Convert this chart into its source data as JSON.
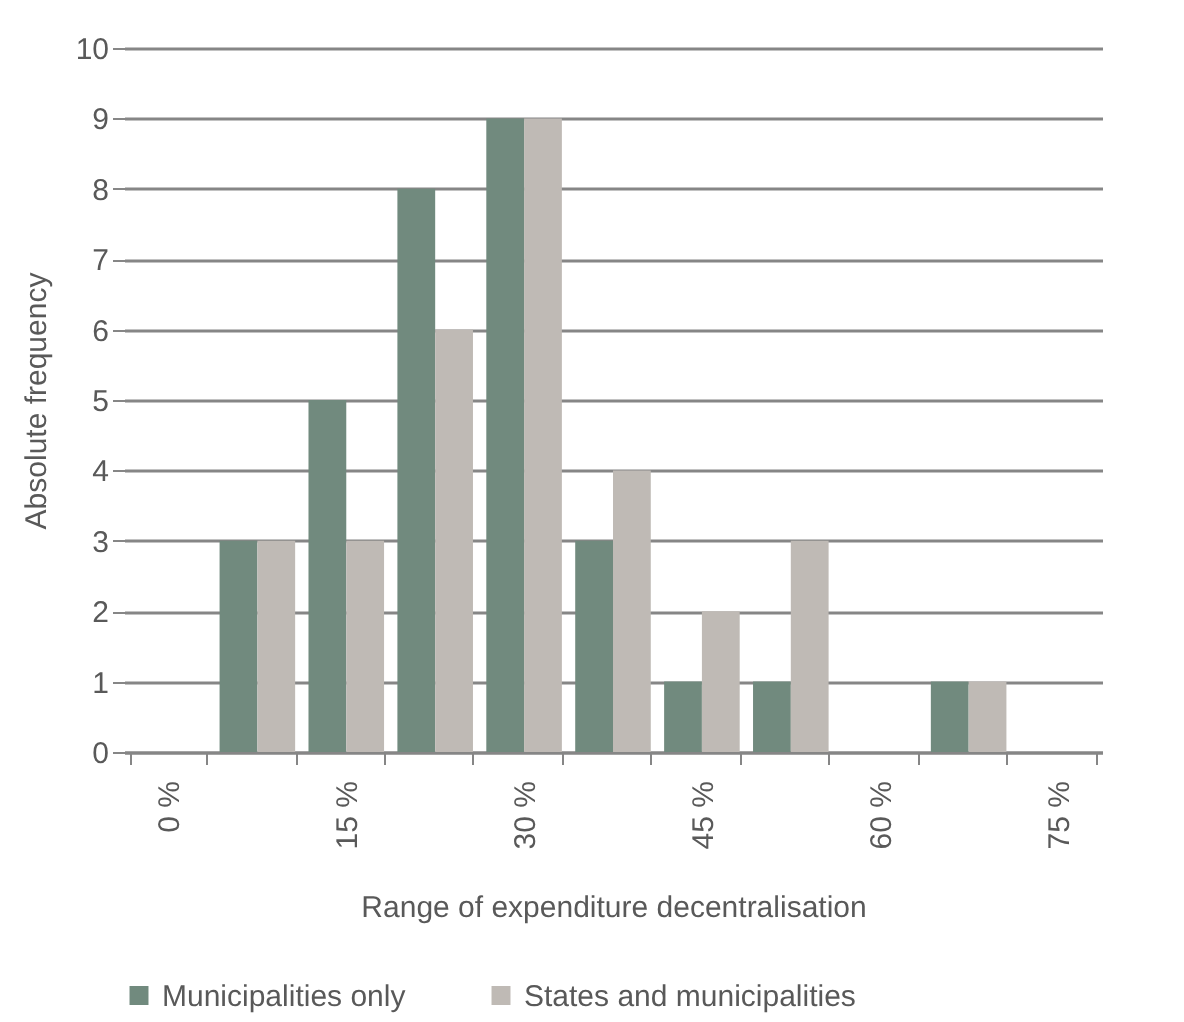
{
  "chart_data": {
    "type": "bar",
    "xlabel": "Range of expenditure decentralisation",
    "ylabel": "Absolute frequency",
    "categories": [
      "0 %",
      null,
      "15 %",
      null,
      "30 %",
      null,
      "45 %",
      null,
      "60 %",
      null,
      "75 %"
    ],
    "series": [
      {
        "name": "Municipalities only",
        "color": "#718a7e",
        "values": [
          0,
          3,
          5,
          8,
          9,
          3,
          1,
          1,
          0,
          1,
          0
        ]
      },
      {
        "name": "States and municipalities",
        "color": "#bfbab5",
        "values": [
          0,
          3,
          3,
          6,
          9,
          4,
          2,
          3,
          0,
          1,
          0
        ]
      }
    ],
    "ylim": [
      0,
      10
    ],
    "yticks": [
      0,
      1,
      2,
      3,
      4,
      5,
      6,
      7,
      8,
      9,
      10
    ],
    "grid": "y",
    "legend": "bottom"
  }
}
